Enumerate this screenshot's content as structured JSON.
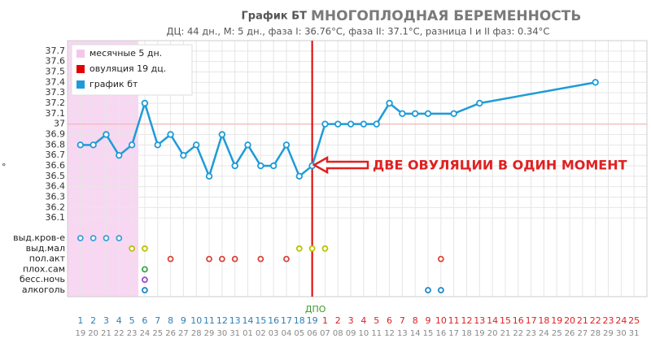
{
  "chart_data": {
    "type": "line",
    "title": "График БТ",
    "title_main": "МНОГОПЛОДНАЯ БЕРЕМЕННОСТЬ",
    "subtitle": "ДЦ: 44 дн., М: 5 дн., фаза I: 36.76°C, фаза II: 37.1°C, разница I и II фаз: 0.34°C",
    "y_unit": "°",
    "annotation": "ДВЕ ОВУЛЯЦИИ В ОДИН МОМЕНТ",
    "ylim": [
      36,
      37.8
    ],
    "yticks": [
      37.7,
      37.6,
      37.5,
      37.4,
      37.3,
      37.2,
      37.1,
      37,
      36.9,
      36.8,
      36.7,
      36.6,
      36.5,
      36.4,
      36.3,
      36.2,
      36.1
    ],
    "xlim": [
      0,
      45
    ],
    "grid": true,
    "coverline": 37,
    "coverline_color": "#f2b3b3",
    "menstruation_days": 5,
    "ovulation_day": 19,
    "legend": [
      {
        "label": "месячные 5 дн.",
        "color": "#f5c6ec"
      },
      {
        "label": "овуляция 19 дц.",
        "color": "#e00000"
      }
    ],
    "series": [
      {
        "name": "график бт",
        "color": "#1e9bd7",
        "x": [
          1,
          2,
          3,
          4,
          5,
          6,
          7,
          8,
          9,
          10,
          11,
          12,
          13,
          14,
          15,
          16,
          17,
          18,
          19,
          20,
          21,
          22,
          23,
          24,
          25,
          26,
          27,
          28,
          30,
          32,
          41
        ],
        "values": [
          36.8,
          36.8,
          36.9,
          36.7,
          36.8,
          37.2,
          36.8,
          36.9,
          36.7,
          36.8,
          36.5,
          36.9,
          36.6,
          36.8,
          36.6,
          36.6,
          36.8,
          36.5,
          36.6,
          37.0,
          37.0,
          37.0,
          37.0,
          37.0,
          37.2,
          37.1,
          37.1,
          37.1,
          37.1,
          37.2,
          37.4
        ]
      }
    ],
    "dpo_label": "ДПО",
    "day_labels": [
      "1",
      "2",
      "3",
      "4",
      "5",
      "6",
      "7",
      "8",
      "9",
      "10",
      "11",
      "12",
      "13",
      "14",
      "15",
      "16",
      "17",
      "18",
      "19",
      "1",
      "2",
      "3",
      "4",
      "5",
      "6",
      "7",
      "8",
      "9",
      "10",
      "11",
      "12",
      "13",
      "14",
      "15",
      "16",
      "17",
      "18",
      "19",
      "20",
      "21",
      "22",
      "23",
      "24",
      "25"
    ],
    "date_labels": [
      "19",
      "20",
      "21",
      "22",
      "23",
      "24",
      "25",
      "26",
      "27",
      "28",
      "29",
      "30",
      "31",
      "01",
      "02",
      "03",
      "04",
      "05",
      "06",
      "07",
      "08",
      "09",
      "10",
      "11",
      "12",
      "13",
      "14",
      "15",
      "16",
      "17",
      "18",
      "19",
      "20",
      "21",
      "22",
      "23",
      "24",
      "25",
      "26",
      "27",
      "28",
      "29",
      "30",
      "31"
    ],
    "marks": [
      {
        "label": "выд.кров-е",
        "markers": [
          {
            "color": "#3aa0d8",
            "days": [
              1,
              2,
              3,
              4
            ]
          }
        ]
      },
      {
        "label": "выд.мал",
        "markers": [
          {
            "color": "#b9c400",
            "days": [
              5,
              6,
              18,
              19,
              20
            ]
          }
        ]
      },
      {
        "label": "пол.акт",
        "markers": [
          {
            "color": "#d9453a",
            "days": [
              8,
              11,
              12,
              13,
              15,
              17,
              29
            ]
          }
        ]
      },
      {
        "label": "плох.сам",
        "markers": [
          {
            "color": "#36a84a",
            "days": [
              6
            ]
          }
        ]
      },
      {
        "label": "бесс.ночь",
        "markers": [
          {
            "color": "#9b4fd0",
            "days": [
              6
            ]
          }
        ]
      },
      {
        "label": "алкоголь",
        "markers": [
          {
            "color": "#1e88c8",
            "days": [
              6,
              28,
              29
            ]
          }
        ]
      }
    ]
  }
}
